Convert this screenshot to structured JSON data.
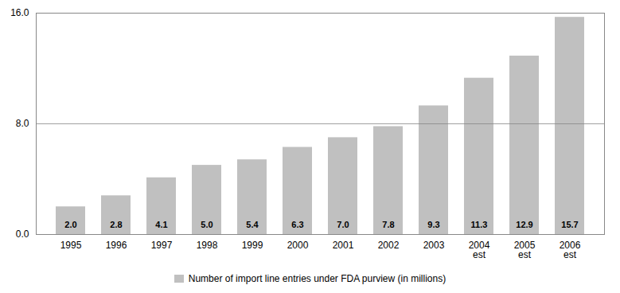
{
  "chart_data": {
    "type": "bar",
    "categories": [
      "1995",
      "1996",
      "1997",
      "1998",
      "1999",
      "2000",
      "2001",
      "2002",
      "2003",
      "2004\nest",
      "2005\nest",
      "2006\nest"
    ],
    "series": [
      {
        "name": "Number of import line entries under FDA purview (in millions)",
        "color": "#c0c0c0",
        "values": [
          2.0,
          2.8,
          4.1,
          5.0,
          5.4,
          6.3,
          7.0,
          7.8,
          9.3,
          11.3,
          12.9,
          15.7
        ],
        "value_labels": [
          "2.0",
          "2.8",
          "4.1",
          "5.0",
          "5.4",
          "6.3",
          "7.0",
          "7.8",
          "9.3",
          "11.3",
          "12.9",
          "15.7"
        ]
      }
    ],
    "ylim": [
      0,
      16.0
    ],
    "yticks": [
      {
        "value": 0.0,
        "label": "0.0"
      },
      {
        "value": 8.0,
        "label": "8.0"
      },
      {
        "value": 16.0,
        "label": "16.0"
      }
    ],
    "grid": true,
    "data_labels": true,
    "legend": "bottom"
  }
}
